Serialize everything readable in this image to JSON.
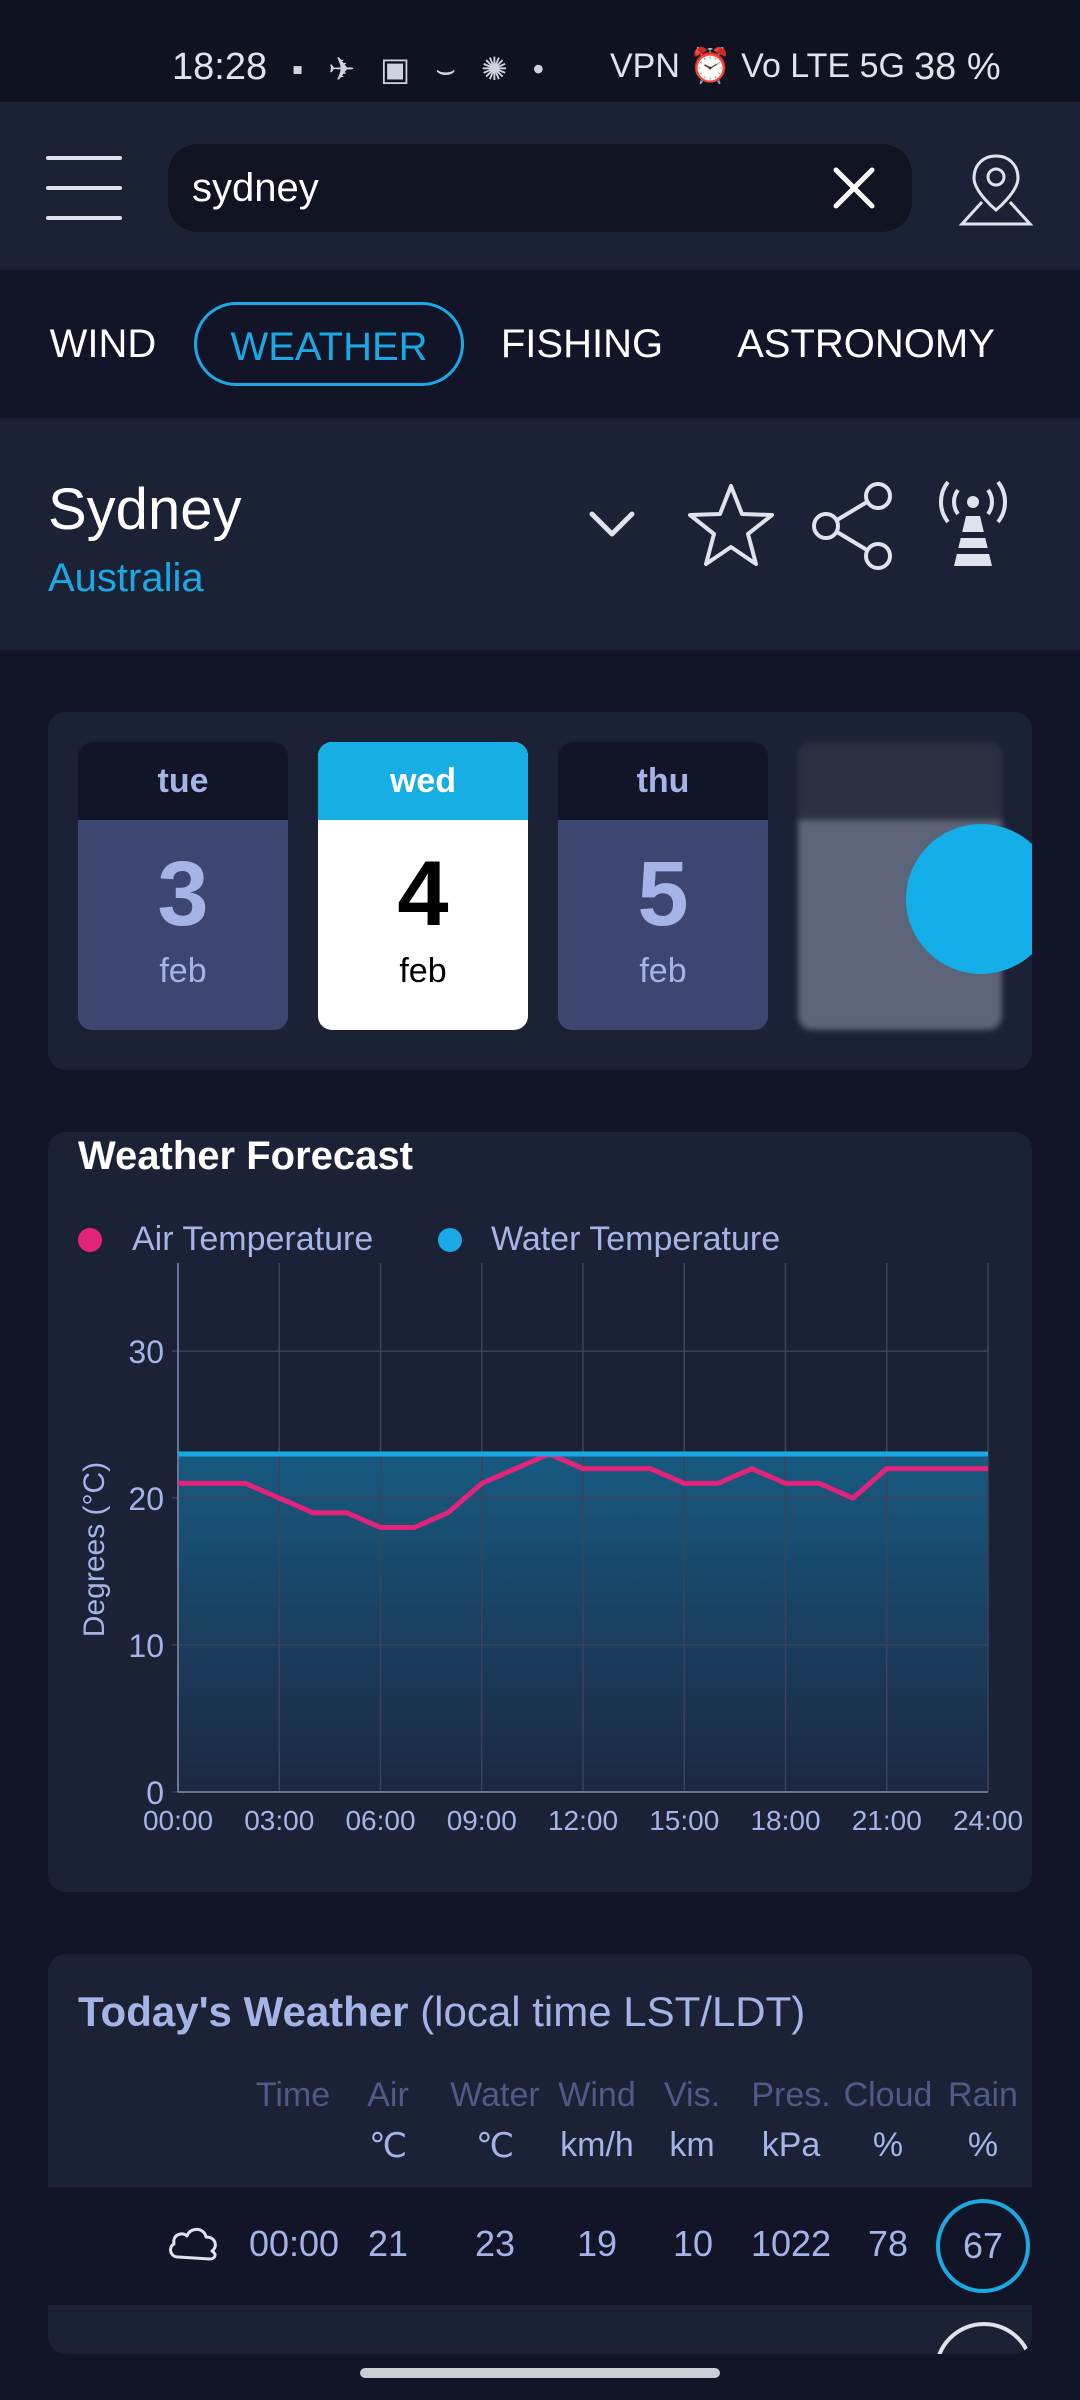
{
  "status_bar": {
    "time": "18:28",
    "icons": [
      "message-icon",
      "telegram-icon",
      "amazon-icon",
      "amazon-smile-icon",
      "openai-icon",
      "dot-icon"
    ],
    "network_labels": "VPN ⏰ Vo LTE 5G",
    "battery": "38 %"
  },
  "search": {
    "value": "sydney",
    "placeholder": ""
  },
  "tabs": [
    {
      "label": "WIND",
      "active": false
    },
    {
      "label": "WEATHER",
      "active": true
    },
    {
      "label": "FISHING",
      "active": false
    },
    {
      "label": "ASTRONOMY",
      "active": false
    }
  ],
  "location": {
    "city": "Sydney",
    "country": "Australia"
  },
  "days": [
    {
      "dow": "tue",
      "day": "3",
      "month": "feb",
      "active": false
    },
    {
      "dow": "wed",
      "day": "4",
      "month": "feb",
      "active": true
    },
    {
      "dow": "thu",
      "day": "5",
      "month": "feb",
      "active": false
    },
    {
      "dow": "",
      "day": "",
      "month": "",
      "active": false,
      "blurred": true
    }
  ],
  "forecast": {
    "title": "Weather Forecast",
    "legend": [
      {
        "label": "Air Temperature",
        "color": "#e3237a"
      },
      {
        "label": "Water Temperature",
        "color": "#1aa9e5"
      }
    ]
  },
  "chart_data": {
    "type": "line",
    "title": "Weather Forecast",
    "xlabel": "",
    "ylabel": "Degrees (°C)",
    "ylim": [
      0,
      33
    ],
    "yticks": [
      0,
      10,
      20,
      30
    ],
    "xticks": [
      "00:00",
      "03:00",
      "06:00",
      "09:00",
      "12:00",
      "15:00",
      "18:00",
      "21:00",
      "24:00"
    ],
    "x": [
      0,
      1,
      2,
      3,
      4,
      5,
      6,
      7,
      8,
      9,
      10,
      11,
      12,
      13,
      14,
      15,
      16,
      17,
      18,
      19,
      20,
      21,
      22,
      23,
      24
    ],
    "series": [
      {
        "name": "Air Temperature",
        "color": "#e3237a",
        "values": [
          21,
          21,
          21,
          20,
          19,
          19,
          18,
          18,
          19,
          21,
          22,
          23,
          22,
          22,
          22,
          21,
          21,
          22,
          21,
          21,
          20,
          22,
          22,
          22,
          22
        ]
      },
      {
        "name": "Water Temperature",
        "color": "#1aa9e5",
        "values": [
          23,
          23,
          23,
          23,
          23,
          23,
          23,
          23,
          23,
          23,
          23,
          23,
          23,
          23,
          23,
          23,
          23,
          23,
          23,
          23,
          23,
          23,
          23,
          23,
          23
        ]
      }
    ],
    "grid": true
  },
  "today": {
    "title_bold": "Today's Weather",
    "title_rest": " (local time LST/LDT)",
    "columns": [
      {
        "header": "Time",
        "unit": ""
      },
      {
        "header": "Air",
        "unit": "℃"
      },
      {
        "header": "Water",
        "unit": "℃"
      },
      {
        "header": "Wind",
        "unit": "km/h"
      },
      {
        "header": "Vis.",
        "unit": "km"
      },
      {
        "header": "Pres.",
        "unit": "kPa"
      },
      {
        "header": "Cloud",
        "unit": "%"
      },
      {
        "header": "Rain",
        "unit": "%"
      }
    ],
    "rows": [
      {
        "icon": "cloud-icon",
        "time": "00:00",
        "air": "21",
        "water": "23",
        "wind": "19",
        "vis": "10",
        "pres": "1022",
        "cloud": "78",
        "rain": "67"
      }
    ]
  }
}
